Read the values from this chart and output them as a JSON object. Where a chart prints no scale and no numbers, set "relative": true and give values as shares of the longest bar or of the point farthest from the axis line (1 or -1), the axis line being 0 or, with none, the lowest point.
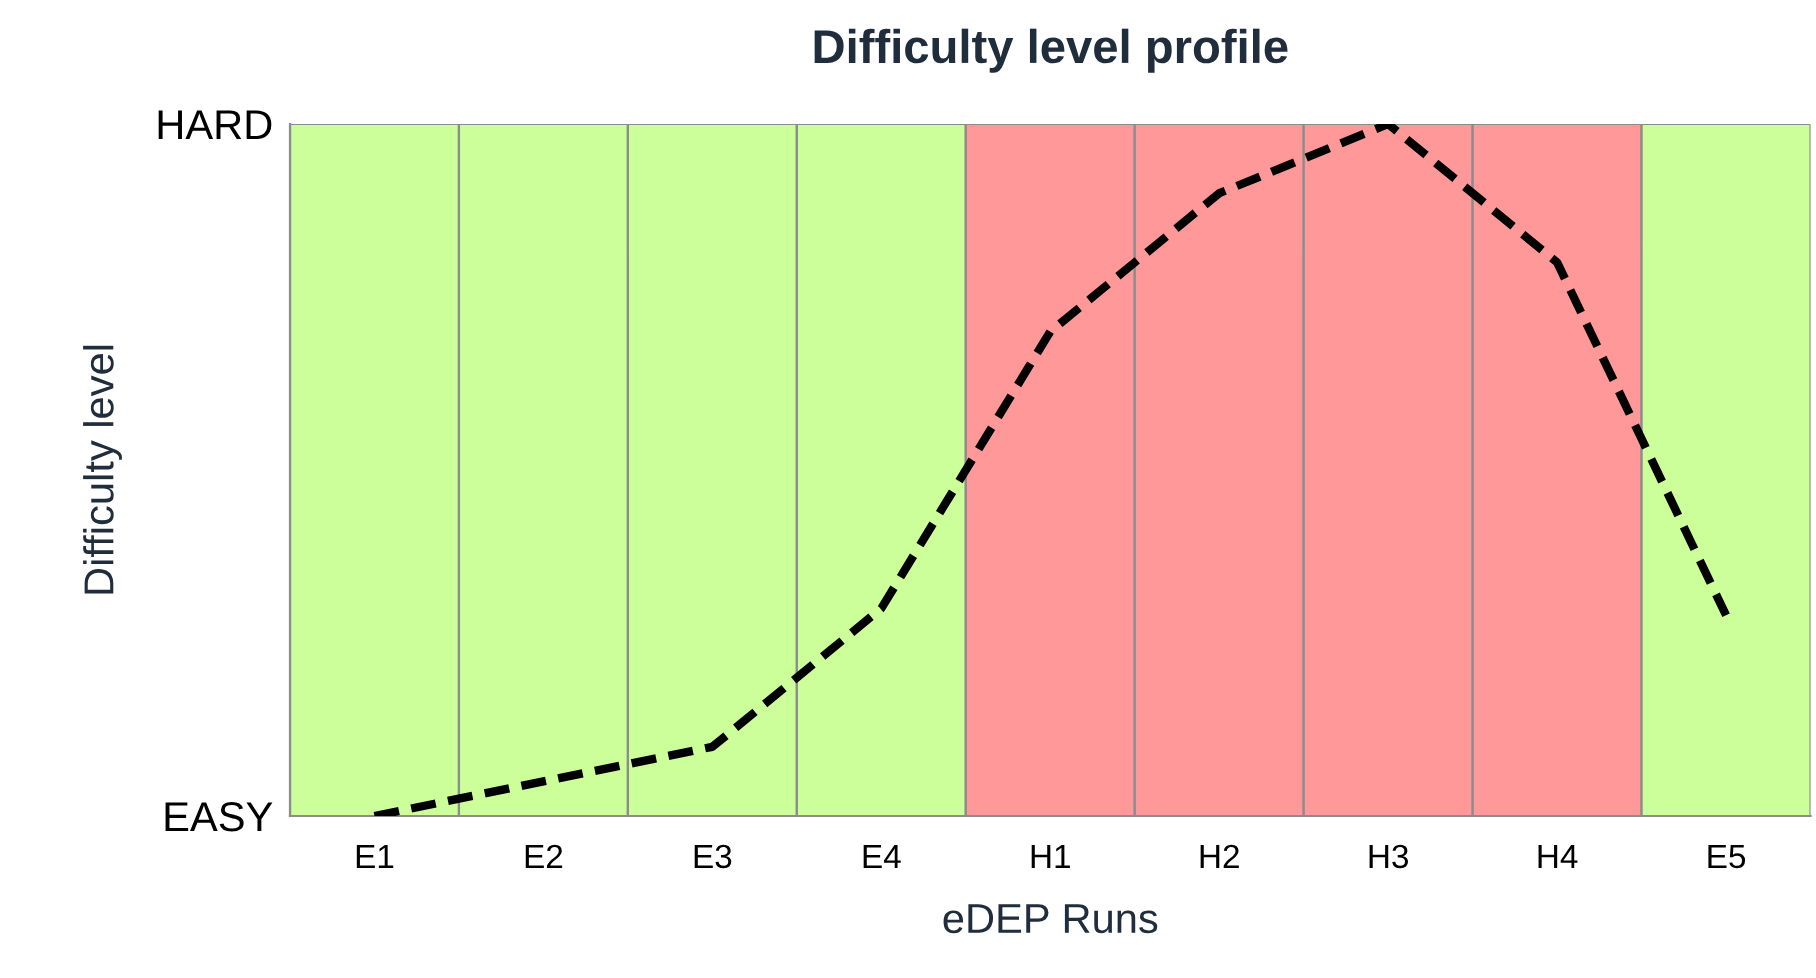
{
  "chart_data": {
    "type": "line",
    "title": "Difficulty level profile",
    "xlabel": "eDEP Runs",
    "ylabel": "Difficulty level",
    "categories": [
      "E1",
      "E2",
      "E3",
      "E4",
      "H1",
      "H2",
      "H3",
      "H4",
      "E5"
    ],
    "series": [
      {
        "type": "bar",
        "colors": [
          "#ccff99",
          "#ccff99",
          "#ccff99",
          "#ccff99",
          "#ff9999",
          "#ff9999",
          "#ff9999",
          "#ff9999",
          "#ccff99"
        ],
        "values": [
          1,
          1,
          1,
          1,
          1,
          1,
          1,
          1,
          1
        ]
      },
      {
        "color": "#000000",
        "line_style": "dashed",
        "values": [
          0,
          0.05,
          0.1,
          0.3,
          0.7,
          0.9,
          1.0,
          0.8,
          0.29
        ]
      }
    ],
    "relative": true,
    "annotations": [
      "EASY",
      "HARD"
    ],
    "grid": false,
    "marker": "none"
  }
}
